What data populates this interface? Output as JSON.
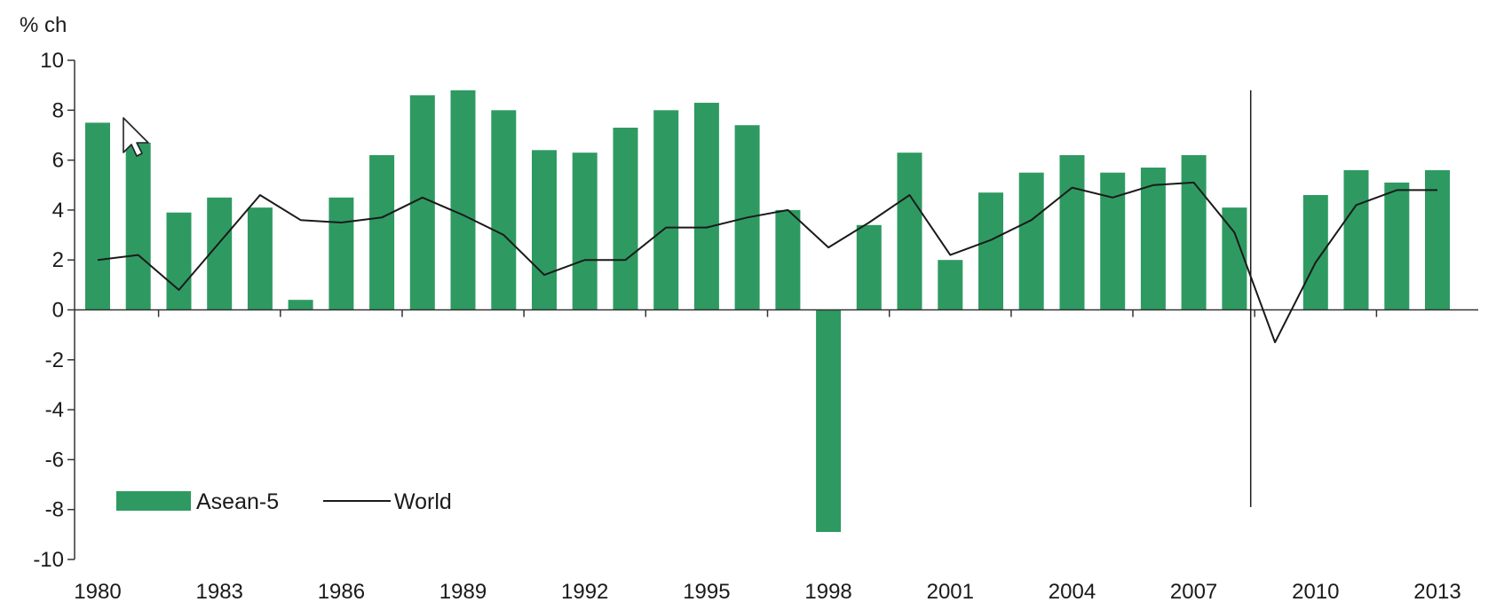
{
  "chart_data": {
    "type": "bar",
    "unit_label": "% ch",
    "ylim": [
      -10,
      10
    ],
    "yticks": [
      10,
      8,
      6,
      4,
      2,
      0,
      -2,
      -4,
      -6,
      -8,
      -10
    ],
    "x_start_year": 1980,
    "x_end_year": 2013,
    "xtick_labels": [
      "1980",
      "1983",
      "1986",
      "1989",
      "1992",
      "1995",
      "1998",
      "2001",
      "2004",
      "2007",
      "2010",
      "2013"
    ],
    "grid": false,
    "legend_position": "bottom-left",
    "series": [
      {
        "name": "Asean-5",
        "kind": "bar",
        "color": "#2e9a62",
        "values": [
          7.5,
          6.7,
          3.9,
          4.5,
          4.1,
          0.4,
          4.5,
          6.2,
          8.6,
          8.8,
          8.0,
          6.4,
          6.3,
          7.3,
          8.0,
          8.3,
          7.4,
          4.0,
          -8.9,
          3.4,
          6.3,
          2.0,
          4.7,
          5.5,
          6.2,
          5.5,
          5.7,
          6.2,
          4.1,
          0.0,
          4.6,
          5.6,
          5.1,
          5.6
        ]
      },
      {
        "name": "World",
        "kind": "line",
        "color": "#1a1a1a",
        "values": [
          2.0,
          2.2,
          0.8,
          2.7,
          4.6,
          3.6,
          3.5,
          3.7,
          4.5,
          3.8,
          3.0,
          1.4,
          2.0,
          2.0,
          3.3,
          3.3,
          3.7,
          4.0,
          2.5,
          3.5,
          4.6,
          2.2,
          2.8,
          3.6,
          4.9,
          4.5,
          5.0,
          5.1,
          3.1,
          -1.3,
          1.9,
          4.2,
          4.8,
          4.8
        ]
      }
    ],
    "annotations": {
      "vertical_line_year": 2008.4,
      "vertical_line_range": [
        -7.9,
        8.8
      ]
    },
    "cursor_icon": "mouse-pointer-icon"
  }
}
